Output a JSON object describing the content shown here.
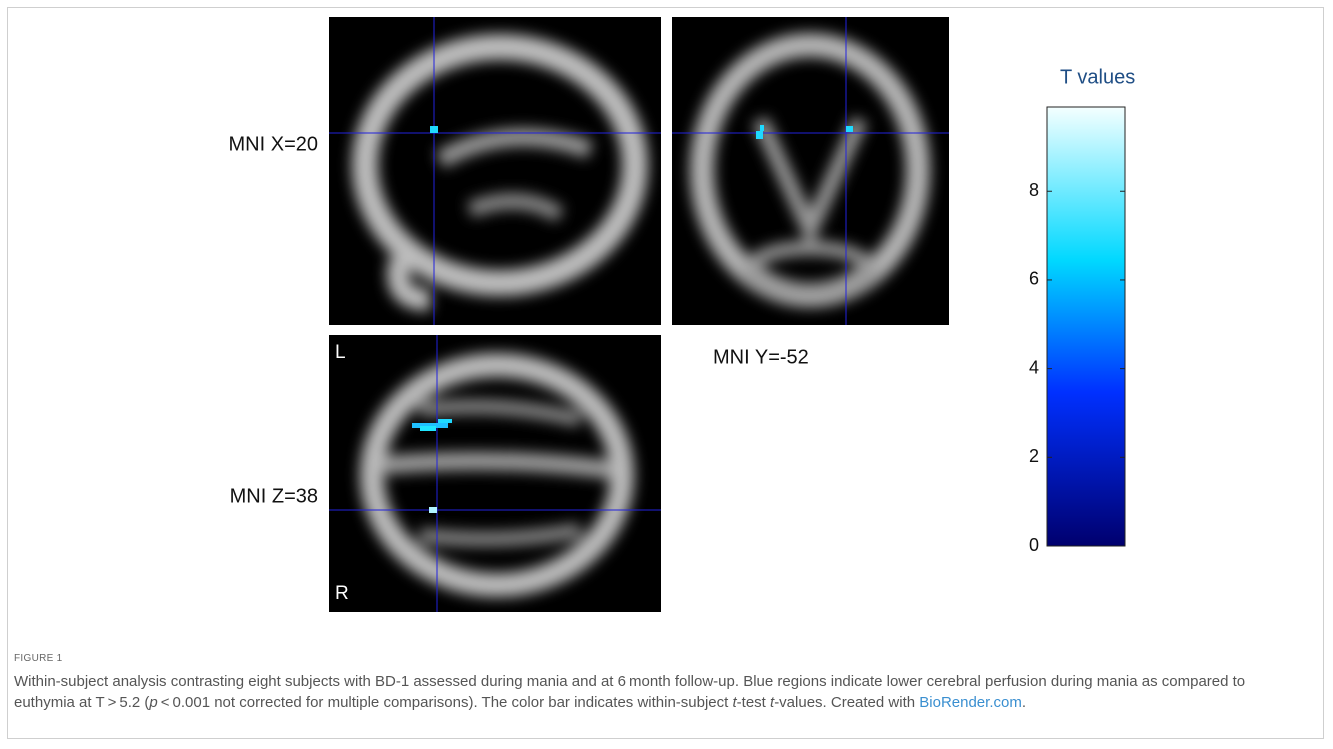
{
  "figure": {
    "panels": [
      {
        "label": "MNI X=20"
      },
      {
        "label": "MNI Y=-52"
      },
      {
        "label": "MNI Z=38",
        "orientation_top": "L",
        "orientation_bottom": "R"
      }
    ],
    "colorbar": {
      "title": "T values",
      "lim": [
        0,
        9.9
      ],
      "ticks": [
        0,
        2,
        4,
        6,
        8
      ]
    }
  },
  "caption": {
    "label": "FIGURE 1",
    "segments": [
      {
        "text": "Within-subject analysis contrasting eight subjects with BD-1 assessed during mania and at 6 month follow-up. Blue regions indicate lower cerebral perfusion during mania as compared to euthymia at T > 5.2 ("
      },
      {
        "text": "p",
        "italic": true
      },
      {
        "text": " < 0.001 not corrected for multiple comparisons). The color bar indicates within-subject "
      },
      {
        "text": "t",
        "italic": true
      },
      {
        "text": "-test "
      },
      {
        "text": "t",
        "italic": true
      },
      {
        "text": "-values. Created with "
      },
      {
        "text": "BioRender.com",
        "link": true
      },
      {
        "text": "."
      }
    ]
  }
}
